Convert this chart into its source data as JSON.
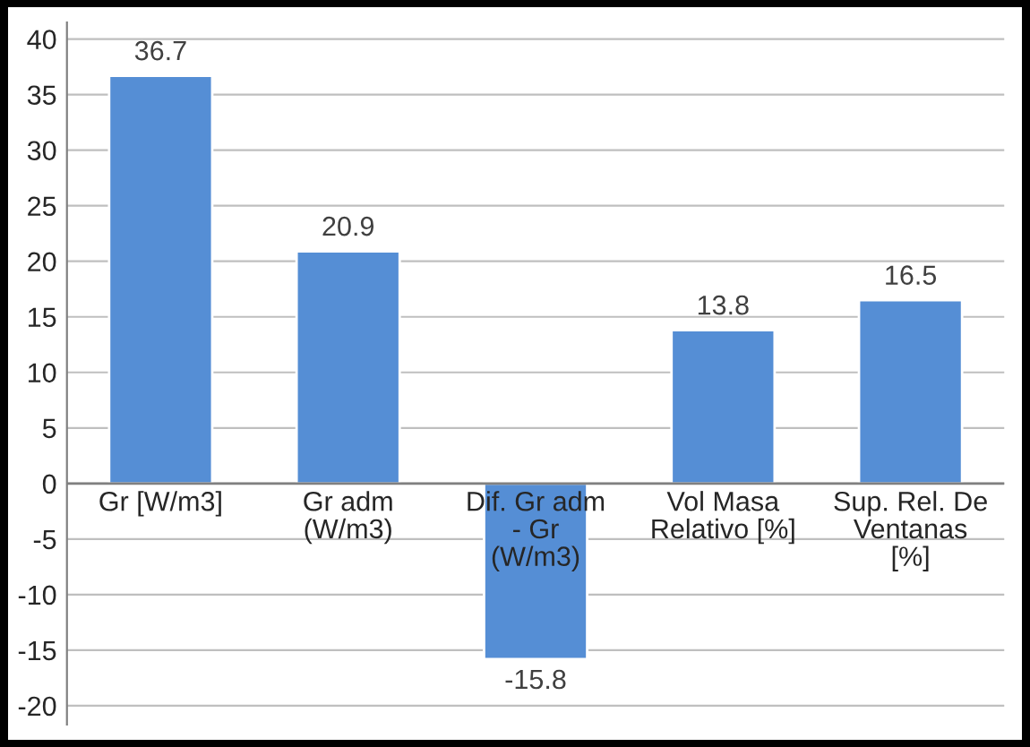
{
  "chart_data": {
    "type": "bar",
    "categories": [
      "Gr [W/m3]",
      "Gr adm\n(W/m3)",
      "Dif. Gr adm\n- Gr\n(W/m3)",
      "Vol Masa\nRelativo [%]",
      "Sup. Rel. De\nVentanas\n[%]"
    ],
    "values": [
      36.7,
      20.9,
      -15.8,
      13.8,
      16.5
    ],
    "color": "#558ed5",
    "ylim": [
      -21.7,
      41.5
    ],
    "yticks": [
      -20,
      -15,
      -10,
      -5,
      0,
      5,
      10,
      15,
      20,
      25,
      30,
      35,
      40
    ],
    "grid": "y",
    "data_labels": true
  }
}
